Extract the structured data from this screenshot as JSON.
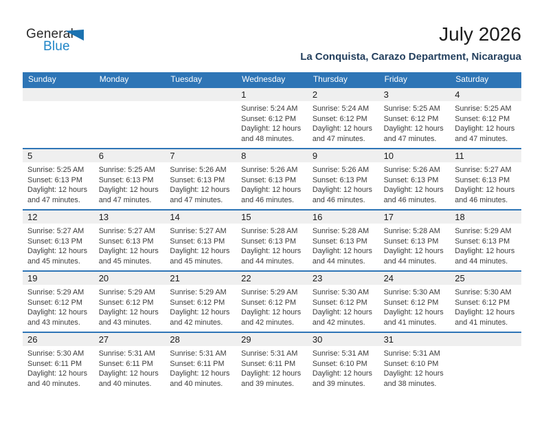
{
  "logo": {
    "text_general": "General",
    "text_blue": "Blue"
  },
  "header": {
    "title": "July 2026",
    "subtitle": "La Conquista, Carazo Department, Nicaragua"
  },
  "labels": {
    "sunrise": "Sunrise:",
    "sunset": "Sunset:",
    "daylight": "Daylight:"
  },
  "colors": {
    "header_bar": "#2e75b6",
    "row_separator": "#2e75b6",
    "day_band": "#efefef",
    "subtitle_text": "#24405e",
    "logo_triangle": "#1b72b0",
    "logo_blue_text": "#1f85c7"
  },
  "calendar": {
    "weekdays": [
      "Sunday",
      "Monday",
      "Tuesday",
      "Wednesday",
      "Thursday",
      "Friday",
      "Saturday"
    ],
    "weeks": [
      [
        null,
        null,
        null,
        {
          "day": "1",
          "sunrise": "5:24 AM",
          "sunset": "6:12 PM",
          "daylight": [
            "12 hours",
            "and 48 minutes."
          ]
        },
        {
          "day": "2",
          "sunrise": "5:24 AM",
          "sunset": "6:12 PM",
          "daylight": [
            "12 hours",
            "and 47 minutes."
          ]
        },
        {
          "day": "3",
          "sunrise": "5:25 AM",
          "sunset": "6:12 PM",
          "daylight": [
            "12 hours",
            "and 47 minutes."
          ]
        },
        {
          "day": "4",
          "sunrise": "5:25 AM",
          "sunset": "6:12 PM",
          "daylight": [
            "12 hours",
            "and 47 minutes."
          ]
        }
      ],
      [
        {
          "day": "5",
          "sunrise": "5:25 AM",
          "sunset": "6:13 PM",
          "daylight": [
            "12 hours",
            "and 47 minutes."
          ]
        },
        {
          "day": "6",
          "sunrise": "5:25 AM",
          "sunset": "6:13 PM",
          "daylight": [
            "12 hours",
            "and 47 minutes."
          ]
        },
        {
          "day": "7",
          "sunrise": "5:26 AM",
          "sunset": "6:13 PM",
          "daylight": [
            "12 hours",
            "and 47 minutes."
          ]
        },
        {
          "day": "8",
          "sunrise": "5:26 AM",
          "sunset": "6:13 PM",
          "daylight": [
            "12 hours",
            "and 46 minutes."
          ]
        },
        {
          "day": "9",
          "sunrise": "5:26 AM",
          "sunset": "6:13 PM",
          "daylight": [
            "12 hours",
            "and 46 minutes."
          ]
        },
        {
          "day": "10",
          "sunrise": "5:26 AM",
          "sunset": "6:13 PM",
          "daylight": [
            "12 hours",
            "and 46 minutes."
          ]
        },
        {
          "day": "11",
          "sunrise": "5:27 AM",
          "sunset": "6:13 PM",
          "daylight": [
            "12 hours",
            "and 46 minutes."
          ]
        }
      ],
      [
        {
          "day": "12",
          "sunrise": "5:27 AM",
          "sunset": "6:13 PM",
          "daylight": [
            "12 hours",
            "and 45 minutes."
          ]
        },
        {
          "day": "13",
          "sunrise": "5:27 AM",
          "sunset": "6:13 PM",
          "daylight": [
            "12 hours",
            "and 45 minutes."
          ]
        },
        {
          "day": "14",
          "sunrise": "5:27 AM",
          "sunset": "6:13 PM",
          "daylight": [
            "12 hours",
            "and 45 minutes."
          ]
        },
        {
          "day": "15",
          "sunrise": "5:28 AM",
          "sunset": "6:13 PM",
          "daylight": [
            "12 hours",
            "and 44 minutes."
          ]
        },
        {
          "day": "16",
          "sunrise": "5:28 AM",
          "sunset": "6:13 PM",
          "daylight": [
            "12 hours",
            "and 44 minutes."
          ]
        },
        {
          "day": "17",
          "sunrise": "5:28 AM",
          "sunset": "6:13 PM",
          "daylight": [
            "12 hours",
            "and 44 minutes."
          ]
        },
        {
          "day": "18",
          "sunrise": "5:29 AM",
          "sunset": "6:13 PM",
          "daylight": [
            "12 hours",
            "and 44 minutes."
          ]
        }
      ],
      [
        {
          "day": "19",
          "sunrise": "5:29 AM",
          "sunset": "6:12 PM",
          "daylight": [
            "12 hours",
            "and 43 minutes."
          ]
        },
        {
          "day": "20",
          "sunrise": "5:29 AM",
          "sunset": "6:12 PM",
          "daylight": [
            "12 hours",
            "and 43 minutes."
          ]
        },
        {
          "day": "21",
          "sunrise": "5:29 AM",
          "sunset": "6:12 PM",
          "daylight": [
            "12 hours",
            "and 42 minutes."
          ]
        },
        {
          "day": "22",
          "sunrise": "5:29 AM",
          "sunset": "6:12 PM",
          "daylight": [
            "12 hours",
            "and 42 minutes."
          ]
        },
        {
          "day": "23",
          "sunrise": "5:30 AM",
          "sunset": "6:12 PM",
          "daylight": [
            "12 hours",
            "and 42 minutes."
          ]
        },
        {
          "day": "24",
          "sunrise": "5:30 AM",
          "sunset": "6:12 PM",
          "daylight": [
            "12 hours",
            "and 41 minutes."
          ]
        },
        {
          "day": "25",
          "sunrise": "5:30 AM",
          "sunset": "6:12 PM",
          "daylight": [
            "12 hours",
            "and 41 minutes."
          ]
        }
      ],
      [
        {
          "day": "26",
          "sunrise": "5:30 AM",
          "sunset": "6:11 PM",
          "daylight": [
            "12 hours",
            "and 40 minutes."
          ]
        },
        {
          "day": "27",
          "sunrise": "5:31 AM",
          "sunset": "6:11 PM",
          "daylight": [
            "12 hours",
            "and 40 minutes."
          ]
        },
        {
          "day": "28",
          "sunrise": "5:31 AM",
          "sunset": "6:11 PM",
          "daylight": [
            "12 hours",
            "and 40 minutes."
          ]
        },
        {
          "day": "29",
          "sunrise": "5:31 AM",
          "sunset": "6:11 PM",
          "daylight": [
            "12 hours",
            "and 39 minutes."
          ]
        },
        {
          "day": "30",
          "sunrise": "5:31 AM",
          "sunset": "6:10 PM",
          "daylight": [
            "12 hours",
            "and 39 minutes."
          ]
        },
        {
          "day": "31",
          "sunrise": "5:31 AM",
          "sunset": "6:10 PM",
          "daylight": [
            "12 hours",
            "and 38 minutes."
          ]
        },
        null
      ]
    ]
  }
}
